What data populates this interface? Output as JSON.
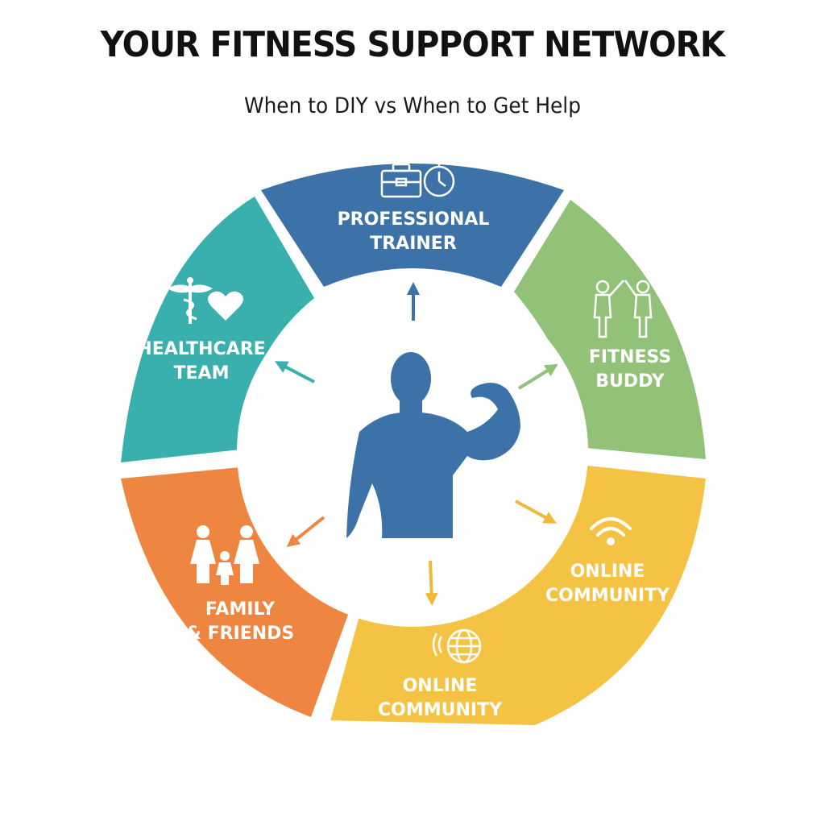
{
  "title": "YOUR FITNESS SUPPORT NETWORK",
  "subtitle": "When to DIY vs When to Get Help",
  "center": {
    "icon": "flexing-person-icon",
    "color": "#3d72a8"
  },
  "segments": [
    {
      "id": "trainer",
      "line1": "PROFESSIONAL",
      "line2": "TRAINER",
      "color": "#3d72a8",
      "icons": [
        "briefcase-icon",
        "stopwatch-icon"
      ]
    },
    {
      "id": "buddy",
      "line1": "FITNESS",
      "line2": "BUDDY",
      "color": "#92c178",
      "icons": [
        "high-five-icon"
      ]
    },
    {
      "id": "online-right",
      "line1": "ONLINE",
      "line2": "COMMUNITY",
      "color": "#f4c344",
      "icons": [
        "wifi-icon"
      ]
    },
    {
      "id": "online-bottom",
      "line1": "ONLINE",
      "line2": "COMMUNITY",
      "color": "#f4c344",
      "icons": [
        "globe-icon"
      ]
    },
    {
      "id": "family",
      "line1": "FAMILY",
      "line2": "& FRIENDS",
      "color": "#ee8540",
      "icons": [
        "family-icon"
      ]
    },
    {
      "id": "healthcare",
      "line1": "HEALTHCARE",
      "line2": "TEAM",
      "color": "#3ab0ae",
      "icons": [
        "caduceus-icon",
        "heart-icon"
      ]
    }
  ],
  "arrows": [
    {
      "to": "trainer",
      "color": "#3d72a8"
    },
    {
      "to": "buddy",
      "color": "#92c178"
    },
    {
      "to": "online-right",
      "color": "#f4c344"
    },
    {
      "to": "online-bottom",
      "color": "#f4c344"
    },
    {
      "to": "family",
      "color": "#ee8540"
    },
    {
      "to": "healthcare",
      "color": "#3ab0ae"
    }
  ]
}
